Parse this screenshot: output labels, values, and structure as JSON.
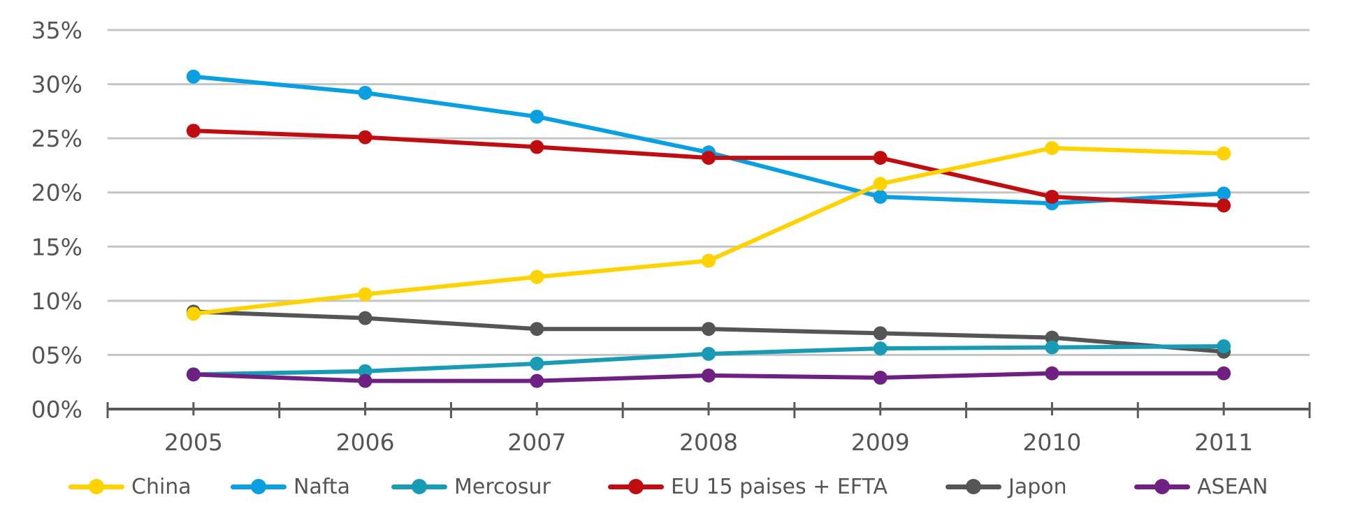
{
  "chart_data": {
    "type": "line",
    "title": "",
    "xlabel": "",
    "ylabel": "",
    "x": [
      "2005",
      "2006",
      "2007",
      "2008",
      "2009",
      "2010",
      "2011"
    ],
    "ylim": [
      0,
      35
    ],
    "yticks": [
      0,
      5,
      10,
      15,
      20,
      25,
      30,
      35
    ],
    "ytick_labels": [
      "00%",
      "05%",
      "10%",
      "15%",
      "20%",
      "25%",
      "30%",
      "35%"
    ],
    "grid": true,
    "legend_position": "bottom",
    "series": [
      {
        "name": "China",
        "color": "#FFD200",
        "values": [
          8.8,
          10.6,
          12.2,
          13.7,
          20.8,
          24.1,
          23.6
        ]
      },
      {
        "name": "Nafta",
        "color": "#0A9FE0",
        "values": [
          30.7,
          29.2,
          27.0,
          23.7,
          19.6,
          19.0,
          19.9
        ]
      },
      {
        "name": "Mercosur",
        "color": "#1A9BB5",
        "values": [
          3.2,
          3.5,
          4.2,
          5.1,
          5.6,
          5.7,
          5.8
        ]
      },
      {
        "name": "EU 15 paises + EFTA",
        "color": "#C00D12",
        "values": [
          25.7,
          25.1,
          24.2,
          23.2,
          23.2,
          19.6,
          18.8
        ]
      },
      {
        "name": "Japon",
        "color": "#555555",
        "values": [
          9.0,
          8.4,
          7.4,
          7.4,
          7.0,
          6.6,
          5.3
        ]
      },
      {
        "name": "ASEAN",
        "color": "#6E2182",
        "values": [
          3.2,
          2.6,
          2.6,
          3.1,
          2.9,
          3.3,
          3.3
        ]
      }
    ]
  }
}
